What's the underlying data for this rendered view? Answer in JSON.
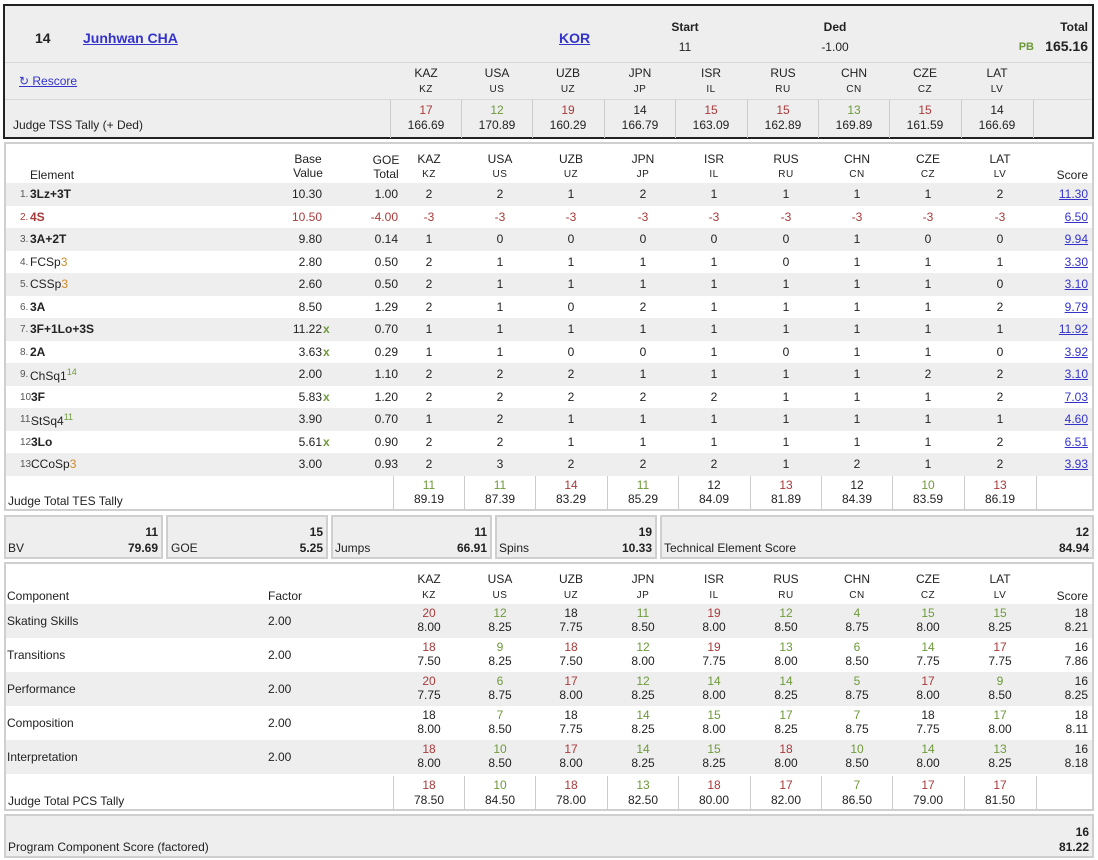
{
  "header": {
    "rank": "14",
    "name": "Junhwan CHA",
    "nation": "KOR",
    "start_label": "Start",
    "start": "11",
    "ded_label": "Ded",
    "ded": "-1.00",
    "total_label": "Total",
    "pb": "PB",
    "total": "165.16",
    "rescore": "↻ Rescore",
    "tss_label": "Judge TSS Tally (+ Ded)"
  },
  "judges": [
    {
      "name": "KAZ",
      "code": "KZ"
    },
    {
      "name": "USA",
      "code": "US"
    },
    {
      "name": "UZB",
      "code": "UZ"
    },
    {
      "name": "JPN",
      "code": "JP"
    },
    {
      "name": "ISR",
      "code": "IL"
    },
    {
      "name": "RUS",
      "code": "RU"
    },
    {
      "name": "CHN",
      "code": "CN"
    },
    {
      "name": "CZE",
      "code": "CZ"
    },
    {
      "name": "LAT",
      "code": "LV"
    }
  ],
  "tss_tally": [
    {
      "rank": "17",
      "color": "red",
      "score": "166.69"
    },
    {
      "rank": "12",
      "color": "green",
      "score": "170.89"
    },
    {
      "rank": "19",
      "color": "red",
      "score": "160.29"
    },
    {
      "rank": "14",
      "color": "black",
      "score": "166.79"
    },
    {
      "rank": "15",
      "color": "red",
      "score": "163.09"
    },
    {
      "rank": "15",
      "color": "red",
      "score": "162.89"
    },
    {
      "rank": "13",
      "color": "green",
      "score": "169.89"
    },
    {
      "rank": "15",
      "color": "red",
      "score": "161.59"
    },
    {
      "rank": "14",
      "color": "black",
      "score": "166.69"
    }
  ],
  "elements_header": {
    "element": "Element",
    "base1": "Base",
    "base2": "Value",
    "goe1": "GOE",
    "goe2": "Total",
    "score": "Score"
  },
  "elements": [
    {
      "num": "1.",
      "name": "3Lz+3T",
      "suffix": "",
      "suffix_color": "",
      "sup": "",
      "sup_color": "",
      "style": "bold",
      "base": "10.30",
      "x": "",
      "goe": "1.00",
      "judges": [
        "2",
        "2",
        "1",
        "2",
        "1",
        "1",
        "1",
        "1",
        "2"
      ],
      "score": "11.30"
    },
    {
      "num": "2.",
      "name": "4S",
      "suffix": "",
      "suffix_color": "",
      "sup": "",
      "sup_color": "",
      "style": "redbold",
      "base": "10.50",
      "x": "",
      "goe": "-4.00",
      "judges": [
        "-3",
        "-3",
        "-3",
        "-3",
        "-3",
        "-3",
        "-3",
        "-3",
        "-3"
      ],
      "score": "6.50"
    },
    {
      "num": "3.",
      "name": "3A+2T",
      "suffix": "",
      "suffix_color": "",
      "sup": "",
      "sup_color": "",
      "style": "bold",
      "base": "9.80",
      "x": "",
      "goe": "0.14",
      "judges": [
        "1",
        "0",
        "0",
        "0",
        "0",
        "0",
        "1",
        "0",
        "0"
      ],
      "score": "9.94"
    },
    {
      "num": "4.",
      "name": "FCSp",
      "suffix": "3",
      "suffix_color": "orange",
      "sup": "",
      "sup_color": "",
      "style": "normal",
      "base": "2.80",
      "x": "",
      "goe": "0.50",
      "judges": [
        "2",
        "1",
        "1",
        "1",
        "1",
        "0",
        "1",
        "1",
        "1"
      ],
      "score": "3.30"
    },
    {
      "num": "5.",
      "name": "CSSp",
      "suffix": "3",
      "suffix_color": "orange",
      "sup": "",
      "sup_color": "",
      "style": "normal",
      "base": "2.60",
      "x": "",
      "goe": "0.50",
      "judges": [
        "2",
        "1",
        "1",
        "1",
        "1",
        "1",
        "1",
        "1",
        "0"
      ],
      "score": "3.10"
    },
    {
      "num": "6.",
      "name": "3A",
      "suffix": "",
      "suffix_color": "",
      "sup": "",
      "sup_color": "",
      "style": "bold",
      "base": "8.50",
      "x": "",
      "goe": "1.29",
      "judges": [
        "2",
        "1",
        "0",
        "2",
        "1",
        "1",
        "1",
        "1",
        "2"
      ],
      "score": "9.79"
    },
    {
      "num": "7.",
      "name": "3F+1Lo+3S",
      "suffix": "",
      "suffix_color": "",
      "sup": "",
      "sup_color": "",
      "style": "bold",
      "base": "11.22",
      "x": "x",
      "goe": "0.70",
      "judges": [
        "1",
        "1",
        "1",
        "1",
        "1",
        "1",
        "1",
        "1",
        "1"
      ],
      "score": "11.92"
    },
    {
      "num": "8.",
      "name": "2A",
      "suffix": "",
      "suffix_color": "",
      "sup": "",
      "sup_color": "",
      "style": "bold",
      "base": "3.63",
      "x": "x",
      "goe": "0.29",
      "judges": [
        "1",
        "1",
        "0",
        "0",
        "1",
        "0",
        "1",
        "1",
        "0"
      ],
      "score": "3.92"
    },
    {
      "num": "9.",
      "name": "ChSq1",
      "suffix": "",
      "suffix_color": "",
      "sup": "14",
      "sup_color": "green",
      "style": "normal",
      "base": "2.00",
      "x": "",
      "goe": "1.10",
      "judges": [
        "2",
        "2",
        "2",
        "1",
        "1",
        "1",
        "1",
        "2",
        "2"
      ],
      "score": "3.10"
    },
    {
      "num": "10.",
      "name": "3F",
      "suffix": "",
      "suffix_color": "",
      "sup": "",
      "sup_color": "",
      "style": "bold",
      "base": "5.83",
      "x": "x",
      "goe": "1.20",
      "judges": [
        "2",
        "2",
        "2",
        "2",
        "2",
        "1",
        "1",
        "1",
        "2"
      ],
      "score": "7.03"
    },
    {
      "num": "11.",
      "name": "StSq4",
      "suffix": "",
      "suffix_color": "",
      "sup": "11",
      "sup_color": "green",
      "style": "normal",
      "base": "3.90",
      "x": "",
      "goe": "0.70",
      "judges": [
        "1",
        "2",
        "1",
        "1",
        "1",
        "1",
        "1",
        "1",
        "1"
      ],
      "score": "4.60"
    },
    {
      "num": "12.",
      "name": "3Lo",
      "suffix": "",
      "suffix_color": "",
      "sup": "",
      "sup_color": "",
      "style": "bold",
      "base": "5.61",
      "x": "x",
      "goe": "0.90",
      "judges": [
        "2",
        "2",
        "1",
        "1",
        "1",
        "1",
        "1",
        "1",
        "2"
      ],
      "score": "6.51"
    },
    {
      "num": "13.",
      "name": "CCoSp",
      "suffix": "3",
      "suffix_color": "orange",
      "sup": "",
      "sup_color": "",
      "style": "normal",
      "base": "3.00",
      "x": "",
      "goe": "0.93",
      "judges": [
        "2",
        "3",
        "2",
        "2",
        "2",
        "1",
        "2",
        "1",
        "2"
      ],
      "score": "3.93"
    }
  ],
  "tes_tally_label": "Judge Total TES Tally",
  "tes_tally": [
    {
      "rank": "11",
      "color": "green",
      "score": "89.19"
    },
    {
      "rank": "11",
      "color": "green",
      "score": "87.39"
    },
    {
      "rank": "14",
      "color": "red",
      "score": "83.29"
    },
    {
      "rank": "11",
      "color": "green",
      "score": "85.29"
    },
    {
      "rank": "12",
      "color": "black",
      "score": "84.09"
    },
    {
      "rank": "13",
      "color": "red",
      "score": "81.89"
    },
    {
      "rank": "12",
      "color": "black",
      "score": "84.39"
    },
    {
      "rank": "10",
      "color": "green",
      "score": "83.59"
    },
    {
      "rank": "13",
      "color": "red",
      "score": "86.19"
    }
  ],
  "summary": {
    "bv": {
      "label": "BV",
      "rank": "11",
      "value": "79.69"
    },
    "goe": {
      "label": "GOE",
      "rank": "15",
      "value": "5.25"
    },
    "jumps": {
      "label": "Jumps",
      "rank": "11",
      "value": "66.91"
    },
    "spins": {
      "label": "Spins",
      "rank": "19",
      "value": "10.33"
    },
    "tes": {
      "label": "Technical Element Score",
      "rank": "12",
      "value": "84.94"
    }
  },
  "components_header": {
    "component": "Component",
    "factor": "Factor",
    "score": "Score"
  },
  "components": [
    {
      "name": "Skating Skills",
      "factor": "2.00",
      "ranks": [
        {
          "r": "20",
          "c": "red"
        },
        {
          "r": "12",
          "c": "green"
        },
        {
          "r": "18",
          "c": "black"
        },
        {
          "r": "11",
          "c": "green"
        },
        {
          "r": "19",
          "c": "red"
        },
        {
          "r": "12",
          "c": "green"
        },
        {
          "r": "4",
          "c": "green"
        },
        {
          "r": "15",
          "c": "green"
        },
        {
          "r": "15",
          "c": "green"
        }
      ],
      "marks": [
        "8.00",
        "8.25",
        "7.75",
        "8.50",
        "8.00",
        "8.50",
        "8.75",
        "8.00",
        "8.25"
      ],
      "rank": "18",
      "score": "8.21"
    },
    {
      "name": "Transitions",
      "factor": "2.00",
      "ranks": [
        {
          "r": "18",
          "c": "red"
        },
        {
          "r": "9",
          "c": "green"
        },
        {
          "r": "18",
          "c": "red"
        },
        {
          "r": "12",
          "c": "green"
        },
        {
          "r": "19",
          "c": "red"
        },
        {
          "r": "13",
          "c": "green"
        },
        {
          "r": "6",
          "c": "green"
        },
        {
          "r": "14",
          "c": "green"
        },
        {
          "r": "17",
          "c": "red"
        }
      ],
      "marks": [
        "7.50",
        "8.25",
        "7.50",
        "8.00",
        "7.75",
        "8.00",
        "8.50",
        "7.75",
        "7.75"
      ],
      "rank": "16",
      "score": "7.86"
    },
    {
      "name": "Performance",
      "factor": "2.00",
      "ranks": [
        {
          "r": "20",
          "c": "red"
        },
        {
          "r": "6",
          "c": "green"
        },
        {
          "r": "17",
          "c": "red"
        },
        {
          "r": "12",
          "c": "green"
        },
        {
          "r": "14",
          "c": "green"
        },
        {
          "r": "14",
          "c": "green"
        },
        {
          "r": "5",
          "c": "green"
        },
        {
          "r": "17",
          "c": "red"
        },
        {
          "r": "9",
          "c": "green"
        }
      ],
      "marks": [
        "7.75",
        "8.75",
        "8.00",
        "8.25",
        "8.00",
        "8.25",
        "8.75",
        "8.00",
        "8.50"
      ],
      "rank": "16",
      "score": "8.25"
    },
    {
      "name": "Composition",
      "factor": "2.00",
      "ranks": [
        {
          "r": "18",
          "c": "black"
        },
        {
          "r": "7",
          "c": "green"
        },
        {
          "r": "18",
          "c": "black"
        },
        {
          "r": "14",
          "c": "green"
        },
        {
          "r": "15",
          "c": "green"
        },
        {
          "r": "17",
          "c": "green"
        },
        {
          "r": "7",
          "c": "green"
        },
        {
          "r": "18",
          "c": "black"
        },
        {
          "r": "17",
          "c": "green"
        }
      ],
      "marks": [
        "8.00",
        "8.50",
        "7.75",
        "8.25",
        "8.00",
        "8.25",
        "8.75",
        "7.75",
        "8.00"
      ],
      "rank": "18",
      "score": "8.11"
    },
    {
      "name": "Interpretation",
      "factor": "2.00",
      "ranks": [
        {
          "r": "18",
          "c": "red"
        },
        {
          "r": "10",
          "c": "green"
        },
        {
          "r": "17",
          "c": "red"
        },
        {
          "r": "14",
          "c": "green"
        },
        {
          "r": "15",
          "c": "green"
        },
        {
          "r": "18",
          "c": "red"
        },
        {
          "r": "10",
          "c": "green"
        },
        {
          "r": "14",
          "c": "green"
        },
        {
          "r": "13",
          "c": "green"
        }
      ],
      "marks": [
        "8.00",
        "8.50",
        "8.00",
        "8.25",
        "8.25",
        "8.00",
        "8.50",
        "8.00",
        "8.25"
      ],
      "rank": "16",
      "score": "8.18"
    }
  ],
  "pcs_tally_label": "Judge Total PCS Tally",
  "pcs_tally": [
    {
      "rank": "18",
      "color": "red",
      "score": "78.50"
    },
    {
      "rank": "10",
      "color": "green",
      "score": "84.50"
    },
    {
      "rank": "18",
      "color": "red",
      "score": "78.00"
    },
    {
      "rank": "13",
      "color": "green",
      "score": "82.50"
    },
    {
      "rank": "18",
      "color": "red",
      "score": "80.00"
    },
    {
      "rank": "17",
      "color": "red",
      "score": "82.00"
    },
    {
      "rank": "7",
      "color": "green",
      "score": "86.50"
    },
    {
      "rank": "17",
      "color": "red",
      "score": "79.00"
    },
    {
      "rank": "17",
      "color": "red",
      "score": "81.50"
    }
  ],
  "pcs": {
    "label": "Program Component Score (factored)",
    "rank": "16",
    "value": "81.22"
  },
  "colors": {
    "red": "#a93a3a",
    "green": "#6e9a3a",
    "orange": "#d08a2a",
    "link": "#3333cc",
    "border": "#222222"
  }
}
